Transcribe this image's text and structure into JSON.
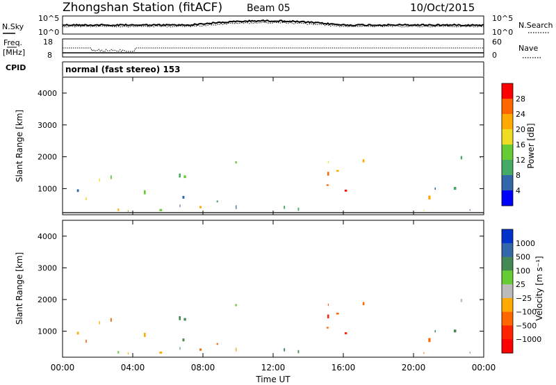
{
  "header": {
    "title": "Zhongshan Station (fitACF)",
    "beam": "Beam 05",
    "date": "10/Oct/2015"
  },
  "noise_panel": {
    "left_label": "N.Sky",
    "right_label": "N.Search",
    "ticks_left": [
      "10^5",
      "10^0"
    ],
    "ticks_right": [
      "10^5",
      "10^0"
    ]
  },
  "freq_panel": {
    "left_label_1": "Freq.",
    "left_label_2": "[MHz]",
    "left_ticks": [
      "18",
      "8"
    ],
    "right_label": "Nave",
    "right_ticks": [
      "60",
      "0"
    ]
  },
  "cpid": {
    "label": "CPID",
    "text": "normal (fast stereo) 153"
  },
  "chart_data": [
    {
      "type": "heatmap",
      "name": "power",
      "ylabel": "Slant Range [km]",
      "yticks": [
        "4000",
        "3000",
        "2000",
        "1000"
      ],
      "yticks_values": [
        4000,
        3000,
        2000,
        1000
      ],
      "ylim": [
        180,
        4500
      ],
      "xlim_hours": [
        0,
        24
      ],
      "colorbar_label": "Power [dB]",
      "colorbar_ticks": [
        "28",
        "24",
        "20",
        "16",
        "12",
        "8",
        "4"
      ],
      "colorbar_colors": [
        "#ff0000",
        "#ff6600",
        "#ffaa00",
        "#eedd22",
        "#66cc33",
        "#44aa66",
        "#3366aa",
        "#0000ff"
      ]
    },
    {
      "type": "heatmap",
      "name": "velocity",
      "ylabel": "Slant Range [km]",
      "yticks": [
        "4000",
        "3000",
        "2000",
        "1000"
      ],
      "yticks_values": [
        4000,
        3000,
        2000,
        1000
      ],
      "ylim": [
        180,
        4500
      ],
      "xlim_hours": [
        0,
        24
      ],
      "colorbar_label": "Velocity [m s⁻¹]",
      "colorbar_ticks": [
        "1000",
        "500",
        "100",
        "25",
        "−25",
        "−100",
        "−500",
        "−1000"
      ],
      "colorbar_colors": [
        "#0033cc",
        "#3366aa",
        "#448855",
        "#66cc33",
        "#bbbbbb",
        "#ffaa00",
        "#ff6600",
        "#ff2200",
        "#ff0000"
      ]
    }
  ],
  "xaxis": {
    "ticks": [
      "00:00",
      "04:00",
      "08:00",
      "12:00",
      "16:00",
      "20:00",
      "00:00"
    ],
    "label": "Time UT"
  },
  "echo_blobs": [
    {
      "t0": 0.0,
      "t1": 3.0,
      "r0": 200,
      "r1": 1400,
      "p": 12,
      "v": -80
    },
    {
      "t0": 1.5,
      "t1": 3.6,
      "r0": 200,
      "r1": 500,
      "p": 22,
      "v": 60
    },
    {
      "t0": 3.0,
      "t1": 6.0,
      "r0": 200,
      "r1": 1000,
      "p": 10,
      "v": -60
    },
    {
      "t0": 6.0,
      "t1": 8.5,
      "r0": 200,
      "r1": 700,
      "p": 20,
      "v": -200
    },
    {
      "t0": 4.0,
      "t1": 7.0,
      "r0": 400,
      "r1": 1700,
      "p": 8,
      "v": 300
    },
    {
      "t0": 8.5,
      "t1": 11.0,
      "r0": 200,
      "r1": 900,
      "p": 10,
      "v": -150
    },
    {
      "t0": 9.8,
      "t1": 11.2,
      "r0": 1700,
      "r1": 2100,
      "p": 14,
      "v": 10
    },
    {
      "t0": 11.5,
      "t1": 15.0,
      "r0": 200,
      "r1": 800,
      "p": 8,
      "v": 200
    },
    {
      "t0": 15.0,
      "t1": 18.5,
      "r0": 700,
      "r1": 1900,
      "p": 24,
      "v": -400
    },
    {
      "t0": 16.0,
      "t1": 17.5,
      "r0": 700,
      "r1": 1300,
      "p": 30,
      "v": -700
    },
    {
      "t0": 19.5,
      "t1": 21.5,
      "r0": 200,
      "r1": 900,
      "p": 20,
      "v": -300
    },
    {
      "t0": 21.0,
      "t1": 24.0,
      "r0": 300,
      "r1": 1200,
      "p": 10,
      "v": 150
    },
    {
      "t0": 21.5,
      "t1": 24.0,
      "r0": 1800,
      "r1": 2400,
      "p": 7,
      "v": 20
    }
  ]
}
